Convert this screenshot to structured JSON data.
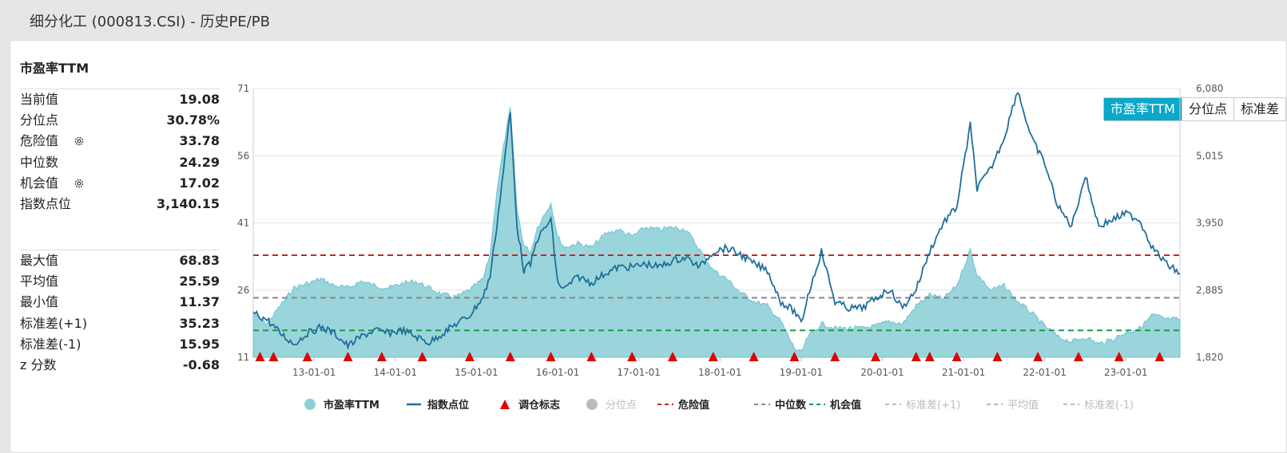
{
  "window": {
    "title": "细分化工 (000813.CSI) - 历史PE/PB"
  },
  "tabs": [
    {
      "label": "市盈率TTM",
      "active": true
    },
    {
      "label": "分位点",
      "active": false
    },
    {
      "label": "标准差",
      "active": false
    }
  ],
  "stats": {
    "heading": "市盈率TTM",
    "group1": [
      {
        "label": "当前值",
        "value": "19.08",
        "gear": false
      },
      {
        "label": "分位点",
        "value": "30.78%",
        "gear": false
      },
      {
        "label": "危险值",
        "value": "33.78",
        "gear": true
      },
      {
        "label": "中位数",
        "value": "24.29",
        "gear": false
      },
      {
        "label": "机会值",
        "value": "17.02",
        "gear": true
      },
      {
        "label": "指数点位",
        "value": "3,140.15",
        "gear": false
      }
    ],
    "group2": [
      {
        "label": "最大值",
        "value": "68.83"
      },
      {
        "label": "平均值",
        "value": "25.59"
      },
      {
        "label": "最小值",
        "value": "11.37"
      },
      {
        "label": "标准差(+1)",
        "value": "35.23"
      },
      {
        "label": "标准差(-1)",
        "value": "15.95"
      },
      {
        "label": "z 分数",
        "value": "-0.68"
      }
    ]
  },
  "colors": {
    "pe_fill": "#8fd0d8",
    "pe_line": "#6cc3cf",
    "index_line": "#1f6f9a",
    "marker": "#e00000",
    "danger": "#c0282c",
    "median": "#888888",
    "opportunity": "#1a9a4a",
    "disabled": "#bbbbbb",
    "tab_active": "#0aa8c9"
  },
  "chart_data": {
    "type": "area",
    "x_start": "2012-04",
    "x_end": "2023-09",
    "x_tick_labels": [
      "13-01-01",
      "14-01-01",
      "15-01-01",
      "16-01-01",
      "17-01-01",
      "18-01-01",
      "19-01-01",
      "20-01-01",
      "21-01-01",
      "22-01-01",
      "23-01-01"
    ],
    "x_tick_dates": [
      "2013-01-01",
      "2014-01-01",
      "2015-01-01",
      "2016-01-01",
      "2017-01-01",
      "2018-01-01",
      "2019-01-01",
      "2020-01-01",
      "2021-01-01",
      "2022-01-01",
      "2023-01-01"
    ],
    "left_axis": {
      "ticks": [
        "71",
        "56",
        "41",
        "26",
        "11"
      ],
      "min": 11,
      "max": 71
    },
    "right_axis": {
      "ticks": [
        "6,080",
        "5,015",
        "3,950",
        "2,885",
        "1,820"
      ],
      "min": 1820,
      "max": 6080
    },
    "grid": true,
    "ref_lines": [
      {
        "name": "危险值",
        "value": 33.78
      },
      {
        "name": "中位数",
        "value": 24.29
      },
      {
        "name": "机会值",
        "value": 17.02
      }
    ],
    "series": [
      {
        "name": "市盈率TTM",
        "axis": "left",
        "points": [
          [
            "2012-04",
            20.5
          ],
          [
            "2012-06",
            18.5
          ],
          [
            "2012-08",
            22.5
          ],
          [
            "2012-10",
            26.5
          ],
          [
            "2012-12",
            27.5
          ],
          [
            "2013-02",
            28.5
          ],
          [
            "2013-04",
            27.0
          ],
          [
            "2013-06",
            26.5
          ],
          [
            "2013-08",
            28.0
          ],
          [
            "2013-10",
            27.0
          ],
          [
            "2013-12",
            26.5
          ],
          [
            "2014-02",
            27.5
          ],
          [
            "2014-04",
            28.0
          ],
          [
            "2014-06",
            26.5
          ],
          [
            "2014-08",
            25.0
          ],
          [
            "2014-10",
            24.5
          ],
          [
            "2014-12",
            26.0
          ],
          [
            "2015-02",
            28.5
          ],
          [
            "2015-03",
            34.0
          ],
          [
            "2015-04",
            48.0
          ],
          [
            "2015-05",
            58.0
          ],
          [
            "2015-06",
            66.5
          ],
          [
            "2015-07",
            44.0
          ],
          [
            "2015-08",
            36.0
          ],
          [
            "2015-09",
            34.5
          ],
          [
            "2015-10",
            40.0
          ],
          [
            "2015-12",
            45.5
          ],
          [
            "2016-01",
            38.0
          ],
          [
            "2016-02",
            35.5
          ],
          [
            "2016-04",
            36.5
          ],
          [
            "2016-06",
            35.5
          ],
          [
            "2016-08",
            38.5
          ],
          [
            "2016-10",
            39.5
          ],
          [
            "2016-12",
            38.0
          ],
          [
            "2017-02",
            40.0
          ],
          [
            "2017-04",
            39.5
          ],
          [
            "2017-06",
            40.0
          ],
          [
            "2017-08",
            39.5
          ],
          [
            "2017-10",
            35.0
          ],
          [
            "2017-12",
            30.5
          ],
          [
            "2018-02",
            28.5
          ],
          [
            "2018-04",
            25.5
          ],
          [
            "2018-06",
            23.5
          ],
          [
            "2018-08",
            22.5
          ],
          [
            "2018-10",
            19.0
          ],
          [
            "2018-12",
            13.0
          ],
          [
            "2019-01",
            12.0
          ],
          [
            "2019-02",
            15.5
          ],
          [
            "2019-04",
            18.5
          ],
          [
            "2019-06",
            17.5
          ],
          [
            "2019-08",
            17.5
          ],
          [
            "2019-10",
            17.5
          ],
          [
            "2019-12",
            18.0
          ],
          [
            "2020-02",
            19.0
          ],
          [
            "2020-04",
            18.5
          ],
          [
            "2020-06",
            22.5
          ],
          [
            "2020-08",
            25.0
          ],
          [
            "2020-10",
            24.0
          ],
          [
            "2020-12",
            27.0
          ],
          [
            "2021-02",
            35.0
          ],
          [
            "2021-03",
            29.5
          ],
          [
            "2021-05",
            26.0
          ],
          [
            "2021-07",
            27.0
          ],
          [
            "2021-09",
            23.5
          ],
          [
            "2021-11",
            21.0
          ],
          [
            "2022-01",
            18.0
          ],
          [
            "2022-03",
            15.5
          ],
          [
            "2022-05",
            14.5
          ],
          [
            "2022-07",
            15.5
          ],
          [
            "2022-09",
            14.0
          ],
          [
            "2022-11",
            15.0
          ],
          [
            "2023-01",
            16.5
          ],
          [
            "2023-03",
            17.5
          ],
          [
            "2023-05",
            20.5
          ],
          [
            "2023-07",
            19.5
          ],
          [
            "2023-09",
            19.5
          ]
        ]
      },
      {
        "name": "指数点位",
        "axis": "right",
        "points": [
          [
            "2012-04",
            2520
          ],
          [
            "2012-06",
            2420
          ],
          [
            "2012-08",
            2200
          ],
          [
            "2012-10",
            2030
          ],
          [
            "2012-12",
            2200
          ],
          [
            "2013-02",
            2300
          ],
          [
            "2013-04",
            2200
          ],
          [
            "2013-06",
            2000
          ],
          [
            "2013-08",
            2150
          ],
          [
            "2013-10",
            2250
          ],
          [
            "2013-12",
            2200
          ],
          [
            "2014-02",
            2250
          ],
          [
            "2014-04",
            2150
          ],
          [
            "2014-06",
            2050
          ],
          [
            "2014-08",
            2200
          ],
          [
            "2014-10",
            2350
          ],
          [
            "2014-12",
            2480
          ],
          [
            "2015-02",
            2780
          ],
          [
            "2015-03",
            3100
          ],
          [
            "2015-04",
            3900
          ],
          [
            "2015-05",
            4800
          ],
          [
            "2015-06",
            5700
          ],
          [
            "2015-07",
            3900
          ],
          [
            "2015-08",
            3200
          ],
          [
            "2015-09",
            3300
          ],
          [
            "2015-10",
            3700
          ],
          [
            "2015-12",
            4000
          ],
          [
            "2016-01",
            3000
          ],
          [
            "2016-02",
            2900
          ],
          [
            "2016-04",
            3100
          ],
          [
            "2016-06",
            3000
          ],
          [
            "2016-08",
            3150
          ],
          [
            "2016-10",
            3250
          ],
          [
            "2016-12",
            3250
          ],
          [
            "2017-02",
            3300
          ],
          [
            "2017-04",
            3250
          ],
          [
            "2017-06",
            3350
          ],
          [
            "2017-08",
            3400
          ],
          [
            "2017-10",
            3250
          ],
          [
            "2017-12",
            3500
          ],
          [
            "2018-02",
            3550
          ],
          [
            "2018-04",
            3450
          ],
          [
            "2018-06",
            3300
          ],
          [
            "2018-08",
            3200
          ],
          [
            "2018-10",
            2700
          ],
          [
            "2018-12",
            2550
          ],
          [
            "2019-01",
            2350
          ],
          [
            "2019-02",
            2800
          ],
          [
            "2019-04",
            3500
          ],
          [
            "2019-06",
            2700
          ],
          [
            "2019-08",
            2600
          ],
          [
            "2019-10",
            2600
          ],
          [
            "2019-12",
            2750
          ],
          [
            "2020-02",
            2900
          ],
          [
            "2020-04",
            2600
          ],
          [
            "2020-06",
            2900
          ],
          [
            "2020-08",
            3500
          ],
          [
            "2020-10",
            3950
          ],
          [
            "2020-12",
            4200
          ],
          [
            "2021-02",
            5500
          ],
          [
            "2021-03",
            4500
          ],
          [
            "2021-05",
            4800
          ],
          [
            "2021-07",
            5300
          ],
          [
            "2021-09",
            6060
          ],
          [
            "2021-11",
            5300
          ],
          [
            "2022-01",
            4900
          ],
          [
            "2022-03",
            4200
          ],
          [
            "2022-05",
            3900
          ],
          [
            "2022-07",
            4700
          ],
          [
            "2022-09",
            3900
          ],
          [
            "2022-11",
            4000
          ],
          [
            "2023-01",
            4100
          ],
          [
            "2023-03",
            4000
          ],
          [
            "2023-05",
            3550
          ],
          [
            "2023-07",
            3300
          ],
          [
            "2023-09",
            3150
          ]
        ]
      }
    ],
    "markers": {
      "name": "调仓标志",
      "dates": [
        "2012-05",
        "2012-07",
        "2012-12",
        "2013-06",
        "2013-11",
        "2014-05",
        "2014-12",
        "2015-06",
        "2015-12",
        "2016-06",
        "2016-12",
        "2017-06",
        "2017-12",
        "2018-06",
        "2018-12",
        "2019-06",
        "2019-12",
        "2020-06",
        "2020-08",
        "2020-12",
        "2021-06",
        "2021-12",
        "2022-06",
        "2022-12",
        "2023-06"
      ]
    },
    "legend": [
      {
        "name": "市盈率TTM",
        "kind": "circle",
        "color": "#8fd0d8",
        "enabled": true
      },
      {
        "name": "指数点位",
        "kind": "line",
        "color": "#1f6f9a",
        "enabled": true
      },
      {
        "name": "调仓标志",
        "kind": "triangle",
        "color": "#e00000",
        "enabled": true
      },
      {
        "name": "分位点",
        "kind": "circle",
        "color": "#bbbbbb",
        "enabled": false
      },
      {
        "name": "危险值",
        "kind": "dash",
        "color": "#c0282c",
        "enabled": true
      },
      {
        "name": "中位数",
        "kind": "dash",
        "color": "#888888",
        "enabled": true
      },
      {
        "name": "机会值",
        "kind": "dash",
        "color": "#1a9a4a",
        "enabled": true
      },
      {
        "name": "标准差(+1)",
        "kind": "dash",
        "color": "#bbbbbb",
        "enabled": false
      },
      {
        "name": "平均值",
        "kind": "dash",
        "color": "#bbbbbb",
        "enabled": false
      },
      {
        "name": "标准差(-1)",
        "kind": "dash",
        "color": "#bbbbbb",
        "enabled": false
      }
    ],
    "legend_position": "bottom"
  }
}
